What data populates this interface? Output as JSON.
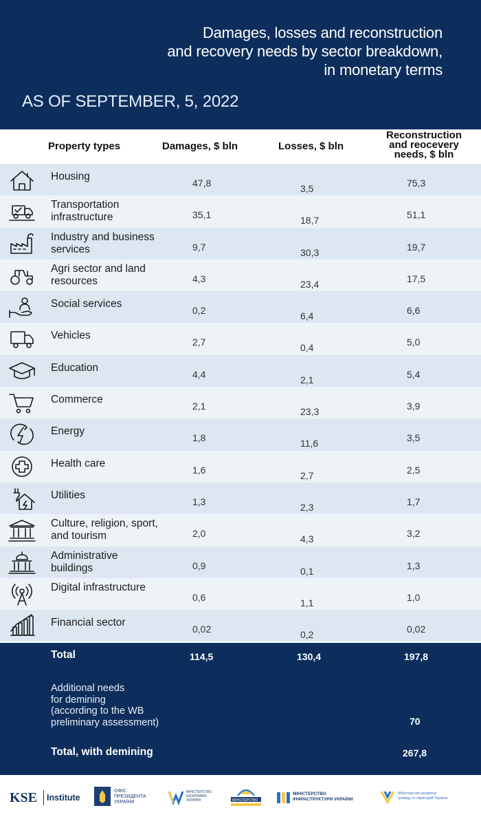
{
  "header": {
    "title_lines": [
      "Damages, losses and reconstruction",
      "and recovery needs by sector breakdown,",
      "in monetary terms"
    ],
    "date": "AS OF SEPTEMBER, 5, 2022"
  },
  "columns": {
    "property": "Property types",
    "damages": "Damages, $ bln",
    "losses": "Losses, $ bln",
    "reconstruction": "Reconstruction and reocevery needs, $ bln"
  },
  "rows": [
    {
      "icon": "house-icon",
      "name": "Housing",
      "damages": "47,8",
      "losses": "3,5",
      "needs": "75,3"
    },
    {
      "icon": "truck-road-icon",
      "name": "Transportation infrastructure",
      "damages": "35,1",
      "losses": "18,7",
      "needs": "51,1"
    },
    {
      "icon": "factory-icon",
      "name": "Industry and business services",
      "damages": "9,7",
      "losses": "30,3",
      "needs": "19,7"
    },
    {
      "icon": "tractor-icon",
      "name": "Agri sector and land resources",
      "damages": "4,3",
      "losses": "23,4",
      "needs": "17,5"
    },
    {
      "icon": "hand-person-icon",
      "name": "Social services",
      "damages": "0,2",
      "losses": "6,4",
      "needs": "6,6"
    },
    {
      "icon": "truck-icon",
      "name": "Vehicles",
      "damages": "2,7",
      "losses": "0,4",
      "needs": "5,0"
    },
    {
      "icon": "graduation-cap-icon",
      "name": "Education",
      "damages": "4,4",
      "losses": "2,1",
      "needs": "5,4"
    },
    {
      "icon": "shopping-cart-icon",
      "name": "Commerce",
      "damages": "2,1",
      "losses": "23,3",
      "needs": "3,9"
    },
    {
      "icon": "lightning-icon",
      "name": "Energy",
      "damages": "1,8",
      "losses": "11,6",
      "needs": "3,5"
    },
    {
      "icon": "medical-cross-icon",
      "name": "Health care",
      "damages": "1,6",
      "losses": "2,7",
      "needs": "2,5"
    },
    {
      "icon": "plug-house-icon",
      "name": "Utilities",
      "damages": "1,3",
      "losses": "2,3",
      "needs": "1,7"
    },
    {
      "icon": "museum-icon",
      "name": "Culture, religion, sport, and tourism",
      "damages": "2,0",
      "losses": "4,3",
      "needs": "3,2"
    },
    {
      "icon": "government-building-icon",
      "name": "Administrative buildings",
      "damages": "0,9",
      "losses": "0,1",
      "needs": "1,3"
    },
    {
      "icon": "signal-tower-icon",
      "name": "Digital infrastructure",
      "damages": "0,6",
      "losses": "1,1",
      "needs": "1,0"
    },
    {
      "icon": "finance-chart-icon",
      "name": "Financial sector",
      "damages": "0,02",
      "losses": "0,2",
      "needs": "0,02"
    }
  ],
  "totals": {
    "total_label": "Total",
    "total_damages": "114,5",
    "total_losses": "130,4",
    "total_needs": "197,8",
    "demining_lines": [
      "Additional needs",
      "for demining",
      "(according to the WB",
      "preliminary assessment)"
    ],
    "demining_needs": "70",
    "with_demining_label": "Total, with demining",
    "with_demining_needs": "267,8"
  },
  "footer": {
    "kse": "KSE",
    "kse_institute": "Institute",
    "logos": [
      {
        "icon": "president-office-icon",
        "lines": [
          "ОФІС",
          "ПРЕЗИДЕНТА",
          "УКРАЇНИ"
        ]
      },
      {
        "icon": "ministry-economy-icon",
        "lines": [
          "МІНІСТЕРСТВО",
          "ЕКОНОМІКИ",
          "УКРАЇНИ"
        ]
      },
      {
        "icon": "ministry-icon",
        "lines": [
          "МІНІСТЕРСТВО"
        ]
      },
      {
        "icon": "ministry-infrastructure-icon",
        "lines": [
          "МІНІСТЕРСТВО",
          "ІНФРАСТРУКТУРИ УКРАЇНИ"
        ]
      },
      {
        "icon": "ministry-regional-icon",
        "lines": [
          "Міністерство розвитку",
          "громад та територій України"
        ]
      }
    ]
  },
  "colors": {
    "navy": "#0d2e5c",
    "row_odd": "#dce7f1",
    "row_even": "#eef3f8"
  },
  "chart_data": {
    "type": "table",
    "title": "Damages, losses and reconstruction and recovery needs by sector breakdown, in monetary terms",
    "subtitle": "AS OF SEPTEMBER, 5, 2022",
    "columns": [
      "Property types",
      "Damages, $ bln",
      "Losses, $ bln",
      "Reconstruction and reocevery needs, $ bln"
    ],
    "categories": [
      "Housing",
      "Transportation infrastructure",
      "Industry and business services",
      "Agri sector and land resources",
      "Social services",
      "Vehicles",
      "Education",
      "Commerce",
      "Energy",
      "Health care",
      "Utilities",
      "Culture, religion, sport, and tourism",
      "Administrative buildings",
      "Digital infrastructure",
      "Financial sector"
    ],
    "series": [
      {
        "name": "Damages, $ bln",
        "values": [
          47.8,
          35.1,
          9.7,
          4.3,
          0.2,
          2.7,
          4.4,
          2.1,
          1.8,
          1.6,
          1.3,
          2.0,
          0.9,
          0.6,
          0.02
        ]
      },
      {
        "name": "Losses, $ bln",
        "values": [
          3.5,
          18.7,
          30.3,
          23.4,
          6.4,
          0.4,
          2.1,
          23.3,
          11.6,
          2.7,
          2.3,
          4.3,
          0.1,
          1.1,
          0.2
        ]
      },
      {
        "name": "Reconstruction and reocevery needs, $ bln",
        "values": [
          75.3,
          51.1,
          19.7,
          17.5,
          6.6,
          5.0,
          5.4,
          3.9,
          3.5,
          2.5,
          1.7,
          3.2,
          1.3,
          1.0,
          0.02
        ]
      }
    ],
    "totals": {
      "damages": 114.5,
      "losses": 130.4,
      "needs": 197.8,
      "demining_needs": 70,
      "needs_with_demining": 267.8
    }
  }
}
